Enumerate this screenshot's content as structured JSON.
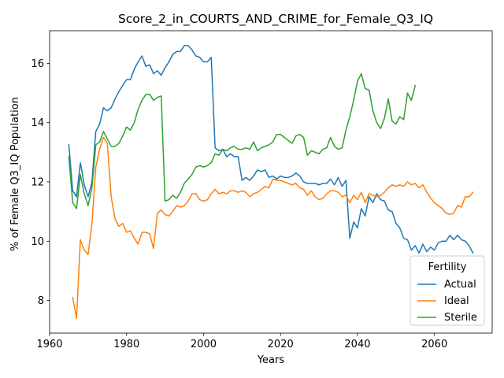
{
  "chart_data": {
    "type": "line",
    "title": "Score_2_in_COURTS_AND_CRIME_for_Female_Q3_IQ",
    "xlabel": "Years",
    "ylabel": "% of Female Q3_IQ Population",
    "xlim": [
      1960,
      2075
    ],
    "ylim": [
      6.9,
      17.1
    ],
    "xticks": [
      1960,
      1980,
      2000,
      2020,
      2040,
      2060
    ],
    "yticks": [
      8,
      10,
      12,
      14,
      16
    ],
    "legend_title": "Fertility",
    "legend_position": "lower-right",
    "grid": false,
    "x": [
      1965,
      1966,
      1967,
      1968,
      1969,
      1970,
      1971,
      1972,
      1973,
      1974,
      1975,
      1976,
      1977,
      1978,
      1979,
      1980,
      1981,
      1982,
      1983,
      1984,
      1985,
      1986,
      1987,
      1988,
      1989,
      1990,
      1991,
      1992,
      1993,
      1994,
      1995,
      1996,
      1997,
      1998,
      1999,
      2000,
      2001,
      2002,
      2003,
      2004,
      2005,
      2006,
      2007,
      2008,
      2009,
      2010,
      2011,
      2012,
      2013,
      2014,
      2015,
      2016,
      2017,
      2018,
      2019,
      2020,
      2021,
      2022,
      2023,
      2024,
      2025,
      2026,
      2027,
      2028,
      2029,
      2030,
      2031,
      2032,
      2033,
      2034,
      2035,
      2036,
      2037,
      2038,
      2039,
      2040,
      2041,
      2042,
      2043,
      2044,
      2045,
      2046,
      2047,
      2048,
      2049,
      2050,
      2051,
      2052,
      2053,
      2054,
      2055,
      2056,
      2057,
      2058,
      2059,
      2060,
      2061,
      2062,
      2063,
      2064,
      2065,
      2066,
      2067,
      2068,
      2069,
      2070
    ],
    "series": [
      {
        "name": "Actual",
        "color": "#1f77b4",
        "values": [
          13.25,
          11.7,
          11.5,
          12.65,
          11.9,
          11.5,
          12.0,
          13.7,
          13.95,
          14.5,
          14.4,
          14.5,
          14.8,
          15.05,
          15.25,
          15.45,
          15.45,
          15.8,
          16.05,
          16.25,
          15.9,
          15.95,
          15.65,
          15.75,
          15.6,
          15.85,
          16.05,
          16.3,
          16.4,
          16.4,
          16.6,
          16.6,
          16.45,
          16.25,
          16.2,
          16.05,
          16.05,
          16.2,
          13.15,
          13.05,
          13.1,
          12.85,
          12.95,
          12.85,
          12.85,
          12.05,
          12.15,
          12.05,
          12.2,
          12.4,
          12.35,
          12.4,
          12.15,
          12.2,
          12.1,
          12.2,
          12.15,
          12.15,
          12.2,
          12.3,
          12.2,
          12.0,
          11.95,
          11.95,
          11.95,
          11.9,
          11.95,
          11.95,
          12.1,
          11.9,
          12.15,
          11.85,
          12.05,
          10.1,
          10.65,
          10.45,
          11.1,
          10.85,
          11.5,
          11.3,
          11.6,
          11.4,
          11.35,
          11.05,
          11.0,
          10.6,
          10.45,
          10.1,
          10.05,
          9.7,
          9.85,
          9.6,
          9.9,
          9.65,
          9.8,
          9.7,
          9.95,
          10.0,
          10.0,
          10.2,
          10.05,
          10.2,
          10.05,
          10.0,
          9.85,
          9.6
        ]
      },
      {
        "name": "Ideal",
        "color": "#ff7f0e",
        "values": [
          null,
          8.1,
          7.4,
          10.05,
          9.7,
          9.55,
          10.6,
          12.5,
          13.1,
          13.5,
          13.3,
          11.5,
          10.75,
          10.5,
          10.6,
          10.3,
          10.35,
          10.1,
          9.9,
          10.3,
          10.3,
          10.25,
          9.75,
          10.95,
          11.05,
          10.9,
          10.85,
          11.0,
          11.2,
          11.15,
          11.2,
          11.35,
          11.6,
          11.6,
          11.4,
          11.35,
          11.4,
          11.6,
          11.75,
          11.6,
          11.65,
          11.6,
          11.7,
          11.7,
          11.65,
          11.7,
          11.65,
          11.5,
          11.6,
          11.65,
          11.75,
          11.85,
          11.8,
          12.1,
          12.05,
          12.05,
          12.0,
          11.95,
          11.9,
          11.95,
          11.8,
          11.75,
          11.55,
          11.7,
          11.5,
          11.4,
          11.45,
          11.6,
          11.7,
          11.7,
          11.65,
          11.5,
          11.55,
          11.3,
          11.55,
          11.4,
          11.65,
          11.3,
          11.6,
          11.55,
          11.5,
          11.55,
          11.65,
          11.8,
          11.9,
          11.85,
          11.9,
          11.85,
          12.0,
          11.9,
          11.95,
          11.8,
          11.9,
          11.65,
          11.45,
          11.3,
          11.2,
          11.1,
          10.95,
          10.9,
          10.95,
          11.2,
          11.15,
          11.5,
          11.5,
          11.65
        ]
      },
      {
        "name": "Sterile",
        "color": "#2ca02c",
        "values": [
          12.85,
          11.3,
          11.1,
          12.25,
          11.6,
          11.2,
          11.8,
          13.25,
          13.35,
          13.7,
          13.45,
          13.2,
          13.2,
          13.3,
          13.55,
          13.85,
          13.75,
          14.0,
          14.45,
          14.75,
          14.95,
          14.95,
          14.75,
          14.85,
          14.9,
          11.35,
          11.4,
          11.55,
          11.45,
          11.65,
          11.95,
          12.1,
          12.25,
          12.5,
          12.55,
          12.5,
          12.55,
          12.65,
          12.95,
          12.9,
          13.1,
          13.05,
          13.15,
          13.2,
          13.1,
          13.1,
          13.15,
          13.1,
          13.35,
          13.05,
          13.15,
          13.2,
          13.25,
          13.35,
          13.6,
          13.6,
          13.5,
          13.4,
          13.3,
          13.55,
          13.6,
          13.5,
          12.9,
          13.05,
          13.0,
          12.95,
          13.1,
          13.15,
          13.5,
          13.2,
          13.1,
          13.15,
          13.75,
          14.2,
          14.75,
          15.4,
          15.65,
          15.15,
          15.1,
          14.4,
          14.0,
          13.8,
          14.15,
          14.8,
          14.05,
          13.95,
          14.2,
          14.1,
          15.0,
          14.75,
          15.25,
          null,
          null,
          null,
          null,
          null,
          null,
          null,
          null,
          null,
          null,
          null,
          null,
          null,
          null,
          null
        ]
      }
    ]
  }
}
